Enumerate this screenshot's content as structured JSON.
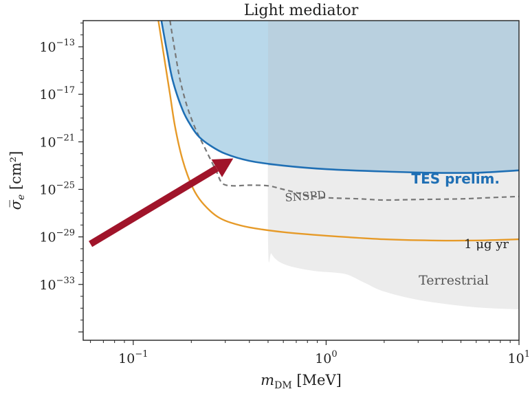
{
  "chart_data": {
    "type": "line",
    "title": "Light mediator",
    "xlabel_main": "m",
    "xlabel_sub": "DM",
    "xlabel_unit": "[MeV]",
    "ylabel_main": "σ̅",
    "ylabel_sub": "e",
    "ylabel_unit": "[cm²]",
    "xscale": "log",
    "yscale": "log",
    "xlim": [
      0.055,
      10
    ],
    "ylim_exp": [
      -37.7,
      -10.8
    ],
    "x_ticks": [
      {
        "value": 0.1,
        "base": "10",
        "exp": "−1"
      },
      {
        "value": 1,
        "base": "10",
        "exp": "0"
      },
      {
        "value": 10,
        "base": "10",
        "exp": "1"
      }
    ],
    "y_ticks": [
      {
        "exp_value": -13,
        "base": "10",
        "exp": "−13"
      },
      {
        "exp_value": -17,
        "base": "10",
        "exp": "−17"
      },
      {
        "exp_value": -21,
        "base": "10",
        "exp": "−21"
      },
      {
        "exp_value": -25,
        "base": "10",
        "exp": "−25"
      },
      {
        "exp_value": -29,
        "base": "10",
        "exp": "−29"
      },
      {
        "exp_value": -33,
        "base": "10",
        "exp": "−33"
      }
    ],
    "legend": "none",
    "grid": false,
    "series": [
      {
        "name": "TES prelim.",
        "color": "#1f6fb4",
        "style": "solid",
        "fill": "#b9d8ea",
        "x": [
          0.14,
          0.15,
          0.16,
          0.18,
          0.2,
          0.22,
          0.25,
          0.3,
          0.4,
          0.6,
          1,
          2,
          3.5,
          6,
          10
        ],
        "log10_y": [
          -10.8,
          -13.5,
          -15.8,
          -18.3,
          -19.7,
          -20.6,
          -21.3,
          -22.0,
          -22.6,
          -23.0,
          -23.3,
          -23.5,
          -23.6,
          -23.6,
          -23.4
        ]
      },
      {
        "name": "SNSPD",
        "color": "#777777",
        "style": "dashed",
        "x": [
          0.155,
          0.165,
          0.175,
          0.19,
          0.21,
          0.23,
          0.25,
          0.27,
          0.29,
          0.33,
          0.4,
          0.5,
          0.6,
          0.8,
          1,
          1.5,
          2,
          3,
          5,
          7,
          10
        ],
        "log10_y": [
          -10.8,
          -13.5,
          -15.8,
          -18.0,
          -19.9,
          -21.2,
          -22.4,
          -23.5,
          -24.5,
          -24.7,
          -24.65,
          -24.7,
          -25.0,
          -25.5,
          -25.7,
          -25.8,
          -25.9,
          -25.85,
          -25.8,
          -25.7,
          -25.6
        ]
      },
      {
        "name": "1 μg yr",
        "color": "#e69a28",
        "style": "solid",
        "x": [
          0.135,
          0.145,
          0.155,
          0.165,
          0.18,
          0.2,
          0.22,
          0.25,
          0.28,
          0.32,
          0.4,
          0.6,
          1,
          2,
          3.5,
          6,
          10
        ],
        "log10_y": [
          -10.8,
          -14.0,
          -17.0,
          -19.8,
          -22.5,
          -24.6,
          -25.8,
          -26.8,
          -27.4,
          -27.8,
          -28.2,
          -28.6,
          -28.9,
          -29.2,
          -29.3,
          -29.3,
          -29.2
        ]
      },
      {
        "name": "Terrestrial",
        "color": "#ececec",
        "style": "region",
        "x": [
          0.5,
          0.5,
          0.52,
          0.56,
          0.63,
          0.75,
          0.9,
          1.1,
          1.3,
          1.6,
          2,
          3,
          5,
          7,
          10
        ],
        "log10_y": [
          -10.8,
          -29.5,
          -30.4,
          -31.0,
          -31.4,
          -31.7,
          -31.9,
          -32.0,
          -32.2,
          -32.9,
          -33.6,
          -34.3,
          -34.8,
          -35.0,
          -35.1
        ]
      }
    ],
    "annotations": {
      "tes": "TES prelim.",
      "snspd": "SNSPD",
      "ugyr_num": "1",
      "ugyr_unit": "μg yr",
      "terrestrial": "Terrestrial"
    },
    "arrow": {
      "color": "#a0142a",
      "from": {
        "x": 0.06,
        "log10_y": -29.6
      },
      "to": {
        "x": 0.33,
        "log10_y": -22.4
      }
    },
    "shade_band": {
      "x_start": 0.5,
      "x_end": 10,
      "color": "#b9cfdd"
    }
  }
}
